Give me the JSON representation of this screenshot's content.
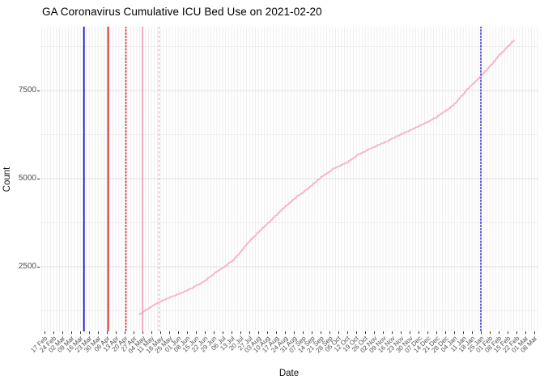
{
  "chart_data": {
    "type": "line",
    "title": "GA Coronavirus Cumulative ICU Bed Use on 2021-02-20",
    "xlabel": "Date",
    "ylabel": "Count",
    "legend": "none",
    "grid": "on",
    "x_axis": {
      "start_date": "2020-02-17",
      "tick_interval_days": 7,
      "tick_labels": [
        "17 Feb",
        "24 Feb",
        "02 Mar",
        "09 Mar",
        "16 Mar",
        "23 Mar",
        "30 Mar",
        "06 Apr",
        "13 Apr",
        "20 Apr",
        "27 Apr",
        "04 May",
        "11 May",
        "18 May",
        "25 May",
        "01 Jun",
        "08 Jun",
        "15 Jun",
        "22 Jun",
        "29 Jun",
        "06 Jul",
        "13 Jul",
        "20 Jul",
        "27 Jul",
        "03 Aug",
        "10 Aug",
        "17 Aug",
        "24 Aug",
        "31 Aug",
        "07 Sep",
        "14 Sep",
        "21 Sep",
        "28 Sep",
        "05 Oct",
        "12 Oct",
        "19 Oct",
        "26 Oct",
        "02 Nov",
        "09 Nov",
        "16 Nov",
        "23 Nov",
        "30 Nov",
        "07 Dec",
        "14 Dec",
        "21 Dec",
        "28 Dec",
        "04 Jan",
        "11 Jan",
        "18 Jan",
        "25 Jan",
        "01 Feb",
        "08 Feb",
        "15 Feb",
        "22 Feb",
        "01 Mar",
        "08 Mar"
      ]
    },
    "y_axis": {
      "tick_labels": [
        "2500",
        "5000",
        "7500"
      ],
      "ticks": [
        2500,
        5000,
        7500
      ],
      "minor_ticks": [
        1250,
        3750,
        6250,
        8750
      ],
      "ylim": [
        700,
        9320
      ]
    },
    "series": [
      {
        "name": "cumulative-icu-bed-use",
        "color": "#f6a8bd",
        "points": [
          [
            "2020-05-01",
            1150
          ],
          [
            "2020-05-08",
            1300
          ],
          [
            "2020-05-15",
            1470
          ],
          [
            "2020-05-22",
            1580
          ],
          [
            "2020-06-01",
            1730
          ],
          [
            "2020-06-10",
            1870
          ],
          [
            "2020-06-20",
            2060
          ],
          [
            "2020-07-01",
            2360
          ],
          [
            "2020-07-07",
            2500
          ],
          [
            "2020-07-15",
            2720
          ],
          [
            "2020-07-23",
            3080
          ],
          [
            "2020-08-01",
            3420
          ],
          [
            "2020-08-13",
            3830
          ],
          [
            "2020-08-22",
            4150
          ],
          [
            "2020-09-01",
            4460
          ],
          [
            "2020-09-10",
            4700
          ],
          [
            "2020-09-20",
            5010
          ],
          [
            "2020-10-01",
            5290
          ],
          [
            "2020-10-12",
            5470
          ],
          [
            "2020-10-20",
            5680
          ],
          [
            "2020-11-01",
            5890
          ],
          [
            "2020-11-10",
            6030
          ],
          [
            "2020-11-20",
            6210
          ],
          [
            "2020-12-01",
            6390
          ],
          [
            "2020-12-11",
            6560
          ],
          [
            "2020-12-20",
            6730
          ],
          [
            "2020-12-30",
            6970
          ],
          [
            "2021-01-05",
            7160
          ],
          [
            "2021-01-13",
            7500
          ],
          [
            "2021-01-20",
            7750
          ],
          [
            "2021-01-25",
            7920
          ],
          [
            "2021-02-01",
            8200
          ],
          [
            "2021-02-08",
            8500
          ],
          [
            "2021-02-14",
            8720
          ],
          [
            "2021-02-20",
            8940
          ]
        ]
      }
    ],
    "vlines": [
      {
        "name": "vline-blue-solid",
        "date": "2020-03-19",
        "color": "#1515c8",
        "style": "solid"
      },
      {
        "name": "vline-red-solid",
        "date": "2020-04-07",
        "color": "#d42222",
        "style": "solid"
      },
      {
        "name": "vline-red-dotted",
        "date": "2020-04-21",
        "color": "#cc2222",
        "style": "dotted"
      },
      {
        "name": "vline-pink-solid",
        "date": "2020-05-04",
        "color": "#f7a0b8",
        "style": "solid"
      },
      {
        "name": "vline-pink-dashed",
        "date": "2020-05-17",
        "color": "#f8b7c8",
        "style": "dashed"
      },
      {
        "name": "vline-blue-dotted",
        "date": "2021-01-25",
        "color": "#2222cc",
        "style": "dotted"
      }
    ]
  }
}
